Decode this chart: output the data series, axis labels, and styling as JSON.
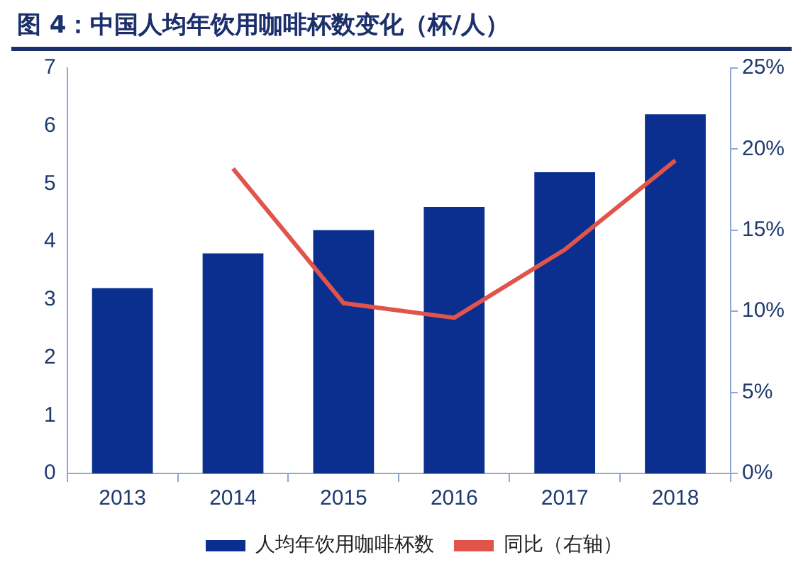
{
  "chart_data": {
    "type": "bar",
    "title": "图 4：中国人均年饮用咖啡杯数变化（杯/人）",
    "categories": [
      "2013",
      "2014",
      "2015",
      "2016",
      "2017",
      "2018"
    ],
    "series": [
      {
        "name": "人均年饮用咖啡杯数",
        "color": "#0b2f8f",
        "values": [
          3.2,
          3.8,
          4.2,
          4.6,
          5.2,
          6.2
        ]
      },
      {
        "name": "同比（右轴）",
        "type": "line",
        "axis": "y2",
        "color": "#e0544b",
        "values": [
          null,
          18.8,
          10.5,
          9.6,
          13.8,
          19.3
        ]
      }
    ],
    "ylim": [
      0,
      7
    ],
    "yticks": [
      0,
      1,
      2,
      3,
      4,
      5,
      6,
      7
    ],
    "y2lim": [
      0,
      25
    ],
    "y2ticks": [
      {
        "value": 0,
        "label": "0%"
      },
      {
        "value": 5,
        "label": "5%"
      },
      {
        "value": 10,
        "label": "10%"
      },
      {
        "value": 15,
        "label": "15%"
      },
      {
        "value": 20,
        "label": "20%"
      },
      {
        "value": 25,
        "label": "25%"
      }
    ],
    "grid": false,
    "legend": "bottom",
    "marker": "none"
  }
}
